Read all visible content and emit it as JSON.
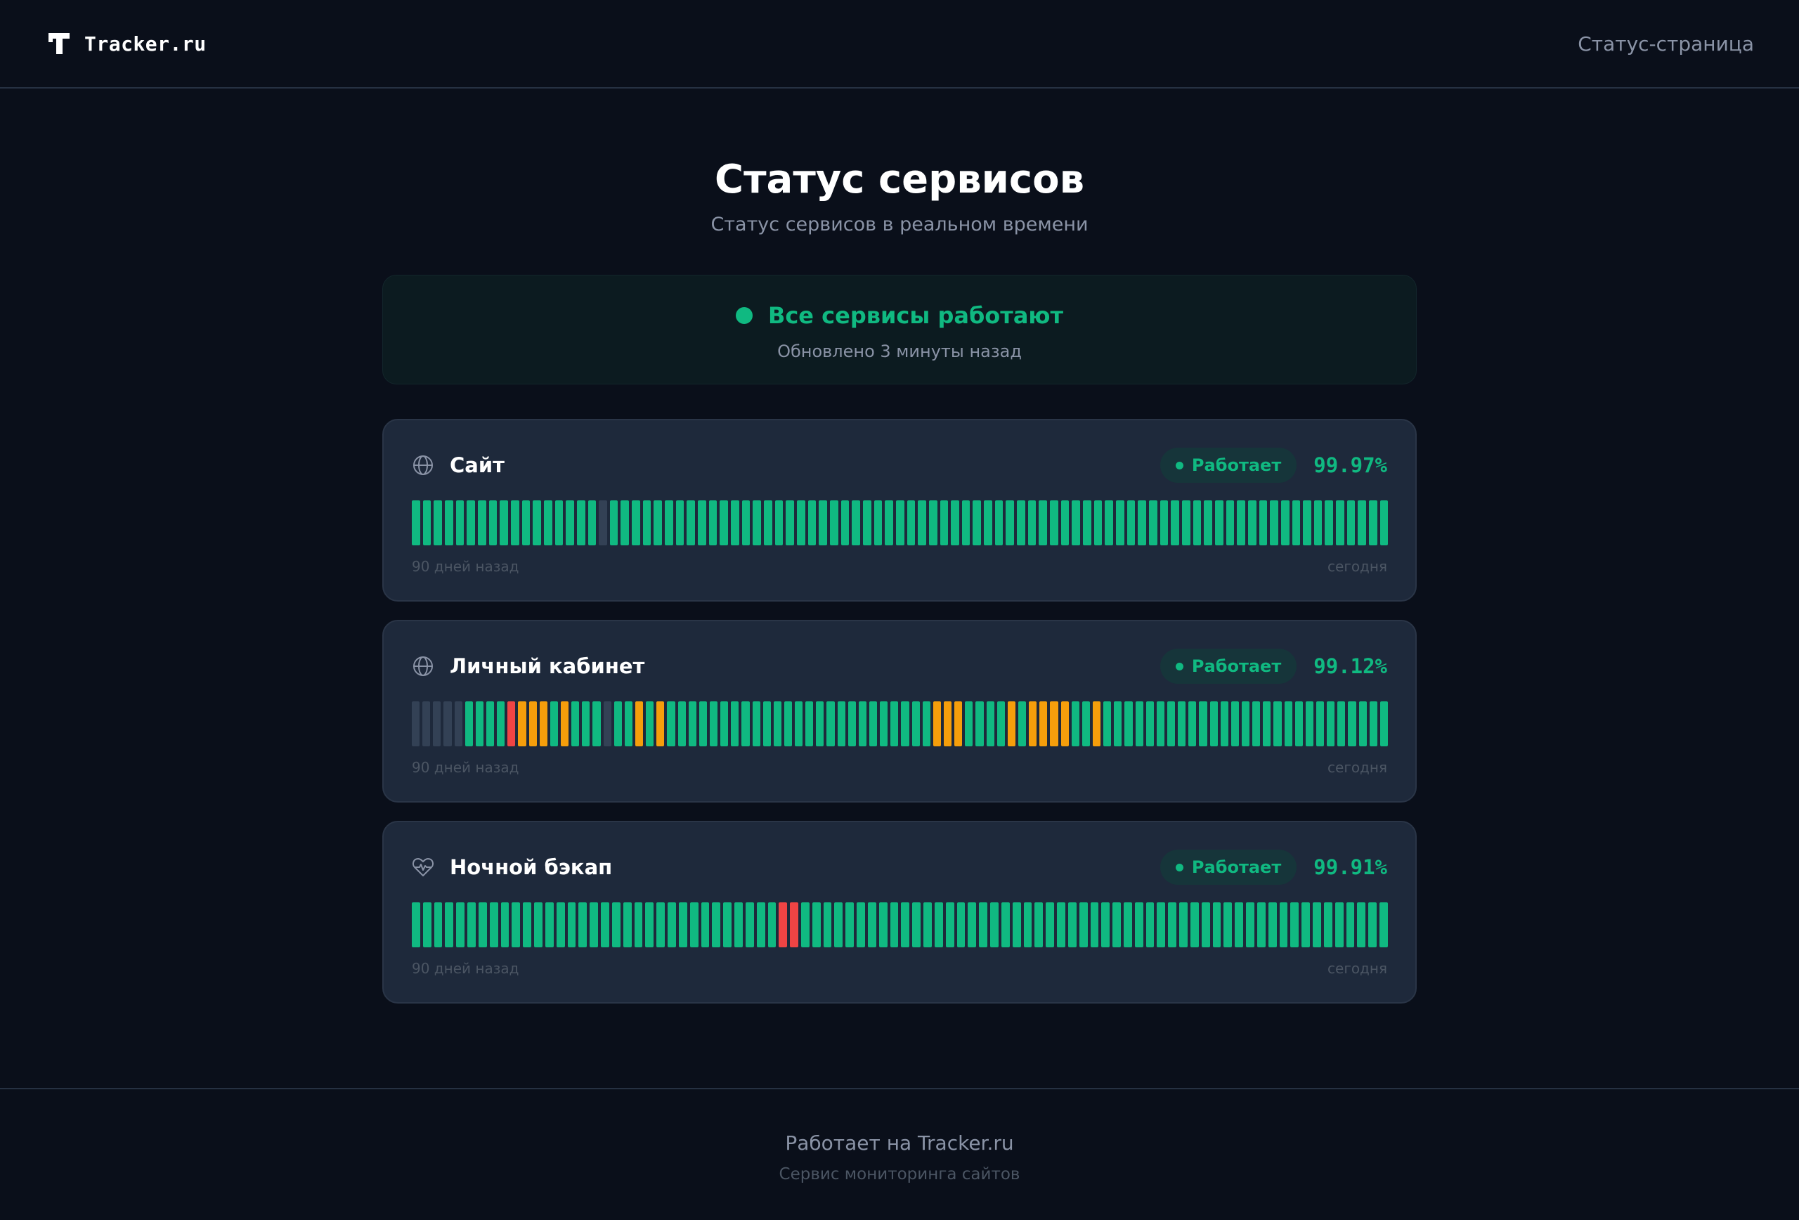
{
  "header": {
    "brand_name": "Tracker.ru",
    "nav_link": "Статус-страница"
  },
  "main": {
    "title": "Статус сервисов",
    "subtitle": "Статус сервисов в реальном времени"
  },
  "summary": {
    "status_text": "Все сервисы работают",
    "updated_text": "Обновлено 3 минуты назад",
    "color": "#10b981"
  },
  "colors": {
    "up": "#10b981",
    "degraded": "#f59e0b",
    "down": "#ef4444",
    "no_data": "#334155"
  },
  "services": [
    {
      "name": "Сайт",
      "icon": "globe-icon",
      "status_label": "Работает",
      "uptime": "99.97%",
      "history_start_label": "90 дней назад",
      "history_end_label": "сегодня",
      "history": "uuuuuuuuuuuuuuuuunuuuuuuuuuuuuuuuuuuuuuuuuuuuuuuuuuuuuuuuuuuuuuuuuuuuuuuuuuuuuuuuuuuuuuuu"
    },
    {
      "name": "Личный кабинет",
      "icon": "globe-icon",
      "status_label": "Работает",
      "uptime": "99.12%",
      "history_start_label": "90 дней назад",
      "history_end_label": "сегодня",
      "history": "nnnnnuuuudwwwuwuuunuuwuwuuuuuuuuuuuuuuuuuuuuuuuuuwwwuuuuwuwwwwuuwuuuuuuuuuuuuuuuuuuuuuuuuuuu"
    },
    {
      "name": "Ночной бэкап",
      "icon": "heartbeat-icon",
      "status_label": "Работает",
      "uptime": "99.91%",
      "history_start_label": "90 дней назад",
      "history_end_label": "сегодня",
      "history": "uuuuuuuuuuuuuuuuuuuuuuuuuuuuuuuuudduuuuuuuuuuuuuuuuuuuuuuuuuuuuuuuuuuuuuuuuuuuuuuuuuuuuu"
    }
  ],
  "footer": {
    "powered_by": "Работает на Tracker.ru",
    "tagline": "Сервис мониторинга сайтов"
  }
}
